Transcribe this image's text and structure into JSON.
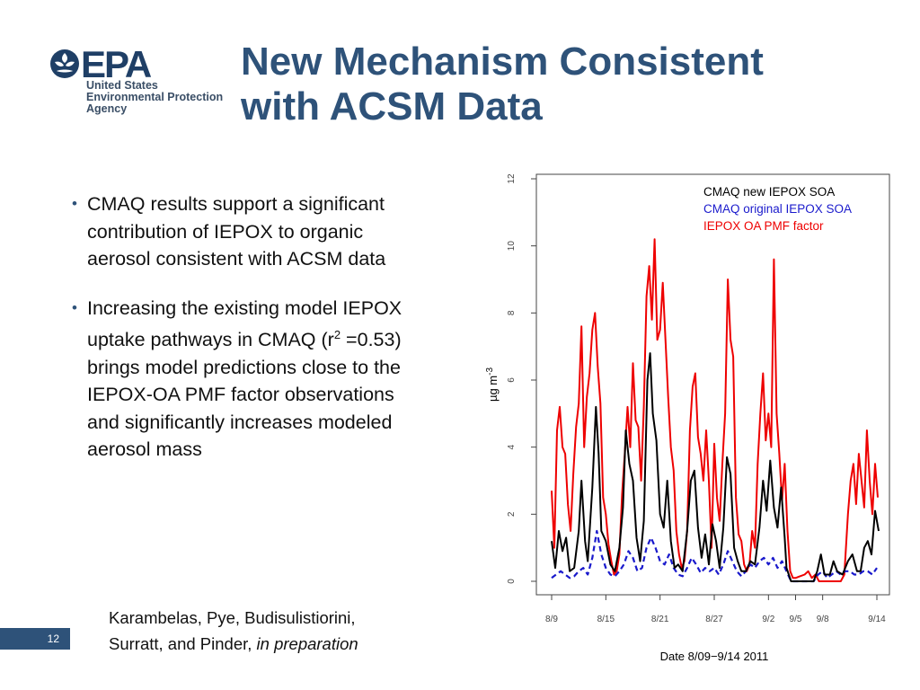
{
  "logo": {
    "wordmark": "EPA",
    "lines": [
      "United States",
      "Environmental Protection",
      "Agency"
    ],
    "icon": "epa-flower-icon"
  },
  "title": {
    "line1": "New Mechanism Consistent",
    "line2": "with ACSM Data"
  },
  "bullets": [
    {
      "text": "CMAQ results support a significant contribution of IEPOX to organic aerosol consistent with ACSM data"
    },
    {
      "pre": "Increasing the existing model IEPOX uptake pathways in CMAQ (r",
      "sup": "2",
      "post": " =0.53) brings model predictions close to the IEPOX-OA PMF factor observations and significantly increases modeled aerosol mass"
    }
  ],
  "citation": {
    "line1": "Karambelas, Pye, Budisulistiorini,",
    "line2_plain": "Surratt, and Pinder, ",
    "line2_italic": "in preparation"
  },
  "page_number": "12",
  "colors": {
    "title": "#2e5279",
    "badge": "#2e5279",
    "new_soa": "#000000",
    "original_soa": "#1a1acc",
    "pmf": "#ee0000"
  },
  "chart_data": {
    "type": "line",
    "ylabel_base": "µg m",
    "ylabel_sup": "-3",
    "xlabel": "Date 8/09−9/14 2011",
    "ylim": [
      0,
      12
    ],
    "yticks": [
      "0",
      "2",
      "4",
      "6",
      "8",
      "10",
      "12"
    ],
    "xticks": [
      {
        "label": "8/9",
        "day": 0
      },
      {
        "label": "8/15",
        "day": 6
      },
      {
        "label": "8/21",
        "day": 12
      },
      {
        "label": "8/27",
        "day": 18
      },
      {
        "label": "9/2",
        "day": 24
      },
      {
        "label": "9/5",
        "day": 27
      },
      {
        "label": "9/8",
        "day": 30
      },
      {
        "label": "9/14",
        "day": 36
      }
    ],
    "xlim_days": [
      0,
      36.5
    ],
    "grid": false,
    "legend_position": "top-right",
    "series": [
      {
        "name": "CMAQ new IEPOX SOA",
        "color": "#000000",
        "dash": false,
        "points": [
          [
            0,
            1.2
          ],
          [
            0.4,
            0.4
          ],
          [
            0.8,
            1.5
          ],
          [
            1.2,
            0.9
          ],
          [
            1.6,
            1.3
          ],
          [
            2.0,
            0.3
          ],
          [
            2.5,
            0.4
          ],
          [
            3.0,
            1.5
          ],
          [
            3.3,
            3.0
          ],
          [
            3.7,
            1.2
          ],
          [
            4.0,
            0.6
          ],
          [
            4.5,
            2.8
          ],
          [
            4.9,
            5.2
          ],
          [
            5.2,
            3.8
          ],
          [
            5.5,
            1.5
          ],
          [
            6.0,
            1.2
          ],
          [
            6.5,
            0.5
          ],
          [
            7.0,
            0.3
          ],
          [
            7.5,
            1.0
          ],
          [
            7.9,
            2.2
          ],
          [
            8.2,
            4.5
          ],
          [
            8.6,
            3.5
          ],
          [
            9.0,
            3.0
          ],
          [
            9.4,
            1.3
          ],
          [
            9.8,
            0.6
          ],
          [
            10.2,
            1.8
          ],
          [
            10.6,
            6.0
          ],
          [
            10.9,
            6.8
          ],
          [
            11.2,
            5.0
          ],
          [
            11.6,
            4.2
          ],
          [
            12.0,
            2.0
          ],
          [
            12.4,
            1.6
          ],
          [
            12.8,
            3.0
          ],
          [
            13.2,
            1.2
          ],
          [
            13.6,
            0.4
          ],
          [
            14.0,
            0.5
          ],
          [
            14.5,
            0.3
          ],
          [
            15.0,
            1.5
          ],
          [
            15.4,
            3.0
          ],
          [
            15.8,
            3.3
          ],
          [
            16.2,
            1.6
          ],
          [
            16.6,
            0.7
          ],
          [
            17.0,
            1.4
          ],
          [
            17.4,
            0.5
          ],
          [
            17.8,
            1.7
          ],
          [
            18.2,
            1.2
          ],
          [
            18.6,
            0.4
          ],
          [
            19.0,
            1.6
          ],
          [
            19.4,
            3.7
          ],
          [
            19.8,
            3.2
          ],
          [
            20.2,
            1.0
          ],
          [
            20.6,
            0.6
          ],
          [
            21.0,
            0.3
          ],
          [
            21.5,
            0.3
          ],
          [
            22.0,
            0.6
          ],
          [
            22.5,
            0.5
          ],
          [
            23.0,
            1.6
          ],
          [
            23.4,
            3.0
          ],
          [
            23.8,
            2.1
          ],
          [
            24.2,
            3.6
          ],
          [
            24.6,
            2.2
          ],
          [
            25.0,
            1.6
          ],
          [
            25.4,
            2.8
          ],
          [
            25.8,
            1.3
          ],
          [
            26.0,
            0.4
          ],
          [
            26.5,
            0.0
          ],
          [
            27.0,
            0.0
          ],
          [
            28.0,
            0.0
          ],
          [
            29.0,
            0.0
          ],
          [
            29.4,
            0.3
          ],
          [
            29.8,
            0.8
          ],
          [
            30.2,
            0.2
          ],
          [
            30.8,
            0.2
          ],
          [
            31.2,
            0.6
          ],
          [
            31.6,
            0.3
          ],
          [
            32.2,
            0.2
          ],
          [
            32.8,
            0.6
          ],
          [
            33.3,
            0.8
          ],
          [
            33.8,
            0.3
          ],
          [
            34.2,
            0.3
          ],
          [
            34.6,
            1.0
          ],
          [
            35.0,
            1.2
          ],
          [
            35.4,
            0.8
          ],
          [
            35.8,
            2.1
          ],
          [
            36.2,
            1.5
          ]
        ]
      },
      {
        "name": "CMAQ original IEPOX SOA",
        "color": "#1a1acc",
        "dash": true,
        "points": [
          [
            0,
            0.1
          ],
          [
            0.5,
            0.2
          ],
          [
            1.0,
            0.3
          ],
          [
            1.5,
            0.2
          ],
          [
            2.0,
            0.1
          ],
          [
            2.5,
            0.15
          ],
          [
            3.0,
            0.3
          ],
          [
            3.5,
            0.4
          ],
          [
            4.0,
            0.2
          ],
          [
            4.5,
            0.7
          ],
          [
            5.0,
            1.5
          ],
          [
            5.5,
            0.8
          ],
          [
            6.0,
            0.4
          ],
          [
            6.5,
            0.2
          ],
          [
            7.0,
            0.15
          ],
          [
            7.5,
            0.3
          ],
          [
            8.0,
            0.5
          ],
          [
            8.5,
            0.9
          ],
          [
            9.0,
            0.7
          ],
          [
            9.5,
            0.3
          ],
          [
            10.0,
            0.4
          ],
          [
            10.5,
            1.0
          ],
          [
            11.0,
            1.3
          ],
          [
            11.5,
            1.0
          ],
          [
            12.0,
            0.6
          ],
          [
            12.5,
            0.5
          ],
          [
            13.0,
            0.8
          ],
          [
            13.5,
            0.4
          ],
          [
            14.0,
            0.2
          ],
          [
            14.5,
            0.15
          ],
          [
            15.0,
            0.4
          ],
          [
            15.5,
            0.7
          ],
          [
            16.0,
            0.5
          ],
          [
            16.5,
            0.25
          ],
          [
            17.0,
            0.4
          ],
          [
            17.5,
            0.3
          ],
          [
            18.0,
            0.4
          ],
          [
            18.5,
            0.2
          ],
          [
            19.0,
            0.5
          ],
          [
            19.5,
            0.9
          ],
          [
            20.0,
            0.6
          ],
          [
            20.5,
            0.3
          ],
          [
            21.0,
            0.15
          ],
          [
            21.5,
            0.3
          ],
          [
            22.0,
            0.5
          ],
          [
            22.5,
            0.4
          ],
          [
            23.0,
            0.6
          ],
          [
            23.5,
            0.7
          ],
          [
            24.0,
            0.5
          ],
          [
            24.5,
            0.7
          ],
          [
            25.0,
            0.4
          ],
          [
            25.5,
            0.6
          ],
          [
            26.0,
            0.3
          ],
          [
            26.5,
            0.0
          ],
          [
            27.0,
            0.0
          ],
          [
            29.0,
            0.0
          ],
          [
            29.5,
            0.2
          ],
          [
            30.0,
            0.3
          ],
          [
            30.5,
            0.1
          ],
          [
            31.0,
            0.2
          ],
          [
            31.5,
            0.3
          ],
          [
            32.0,
            0.2
          ],
          [
            32.5,
            0.3
          ],
          [
            33.0,
            0.3
          ],
          [
            33.5,
            0.2
          ],
          [
            34.0,
            0.2
          ],
          [
            34.5,
            0.3
          ],
          [
            35.0,
            0.3
          ],
          [
            35.5,
            0.2
          ],
          [
            36.0,
            0.4
          ]
        ]
      },
      {
        "name": "IEPOX OA PMF factor",
        "color": "#ee0000",
        "dash": false,
        "points": [
          [
            0,
            2.7
          ],
          [
            0.3,
            1.0
          ],
          [
            0.6,
            4.5
          ],
          [
            0.9,
            5.2
          ],
          [
            1.2,
            4.0
          ],
          [
            1.5,
            3.8
          ],
          [
            1.8,
            2.3
          ],
          [
            2.1,
            1.5
          ],
          [
            2.4,
            3.2
          ],
          [
            2.7,
            4.6
          ],
          [
            3.0,
            5.3
          ],
          [
            3.3,
            7.6
          ],
          [
            3.6,
            4.0
          ],
          [
            3.9,
            5.5
          ],
          [
            4.2,
            6.2
          ],
          [
            4.5,
            7.5
          ],
          [
            4.8,
            8.0
          ],
          [
            5.1,
            6.4
          ],
          [
            5.4,
            5.3
          ],
          [
            5.7,
            2.5
          ],
          [
            6.0,
            2.0
          ],
          [
            6.3,
            1.1
          ],
          [
            6.6,
            0.6
          ],
          [
            6.9,
            0.2
          ],
          [
            7.2,
            0.3
          ],
          [
            7.5,
            0.8
          ],
          [
            7.8,
            2.6
          ],
          [
            8.1,
            3.8
          ],
          [
            8.4,
            5.2
          ],
          [
            8.7,
            4.0
          ],
          [
            9.0,
            6.5
          ],
          [
            9.3,
            4.8
          ],
          [
            9.6,
            4.6
          ],
          [
            9.9,
            3.0
          ],
          [
            10.2,
            5.2
          ],
          [
            10.5,
            8.5
          ],
          [
            10.8,
            9.4
          ],
          [
            11.1,
            7.8
          ],
          [
            11.4,
            10.2
          ],
          [
            11.7,
            7.2
          ],
          [
            12.0,
            7.5
          ],
          [
            12.3,
            8.9
          ],
          [
            12.6,
            7.2
          ],
          [
            12.9,
            5.5
          ],
          [
            13.2,
            4.0
          ],
          [
            13.5,
            3.3
          ],
          [
            13.8,
            1.5
          ],
          [
            14.1,
            0.8
          ],
          [
            14.4,
            0.4
          ],
          [
            14.7,
            0.6
          ],
          [
            15.0,
            1.5
          ],
          [
            15.3,
            4.5
          ],
          [
            15.6,
            5.8
          ],
          [
            15.9,
            6.2
          ],
          [
            16.2,
            4.3
          ],
          [
            16.5,
            3.8
          ],
          [
            16.8,
            3.0
          ],
          [
            17.1,
            4.5
          ],
          [
            17.4,
            3.0
          ],
          [
            17.7,
            1.0
          ],
          [
            18.0,
            4.1
          ],
          [
            18.3,
            2.5
          ],
          [
            18.6,
            1.8
          ],
          [
            18.9,
            3.5
          ],
          [
            19.2,
            5.0
          ],
          [
            19.5,
            9.0
          ],
          [
            19.8,
            7.2
          ],
          [
            20.1,
            6.7
          ],
          [
            20.4,
            2.5
          ],
          [
            20.7,
            1.4
          ],
          [
            21.0,
            1.2
          ],
          [
            21.3,
            0.5
          ],
          [
            21.6,
            0.3
          ],
          [
            21.9,
            0.5
          ],
          [
            22.2,
            1.5
          ],
          [
            22.5,
            1.0
          ],
          [
            22.8,
            3.5
          ],
          [
            23.1,
            5.0
          ],
          [
            23.4,
            6.2
          ],
          [
            23.7,
            4.2
          ],
          [
            24.0,
            5.0
          ],
          [
            24.3,
            4.0
          ],
          [
            24.6,
            9.6
          ],
          [
            24.9,
            5.0
          ],
          [
            25.2,
            3.8
          ],
          [
            25.5,
            2.4
          ],
          [
            25.8,
            3.5
          ],
          [
            26.1,
            1.5
          ],
          [
            26.4,
            0.3
          ],
          [
            26.7,
            0.1
          ],
          [
            27.0,
            0.1
          ],
          [
            28.0,
            0.2
          ],
          [
            28.4,
            0.3
          ],
          [
            28.8,
            0.1
          ],
          [
            29.2,
            0.2
          ],
          [
            29.6,
            0.0
          ],
          [
            30.0,
            0.0
          ],
          [
            31.0,
            0.0
          ],
          [
            32.0,
            0.0
          ],
          [
            32.4,
            0.2
          ],
          [
            32.8,
            2.0
          ],
          [
            33.1,
            3.0
          ],
          [
            33.4,
            3.5
          ],
          [
            33.7,
            2.3
          ],
          [
            34.0,
            3.8
          ],
          [
            34.3,
            3.0
          ],
          [
            34.6,
            2.2
          ],
          [
            34.9,
            4.5
          ],
          [
            35.2,
            3.0
          ],
          [
            35.5,
            2.0
          ],
          [
            35.8,
            3.5
          ],
          [
            36.1,
            2.5
          ]
        ]
      }
    ]
  }
}
